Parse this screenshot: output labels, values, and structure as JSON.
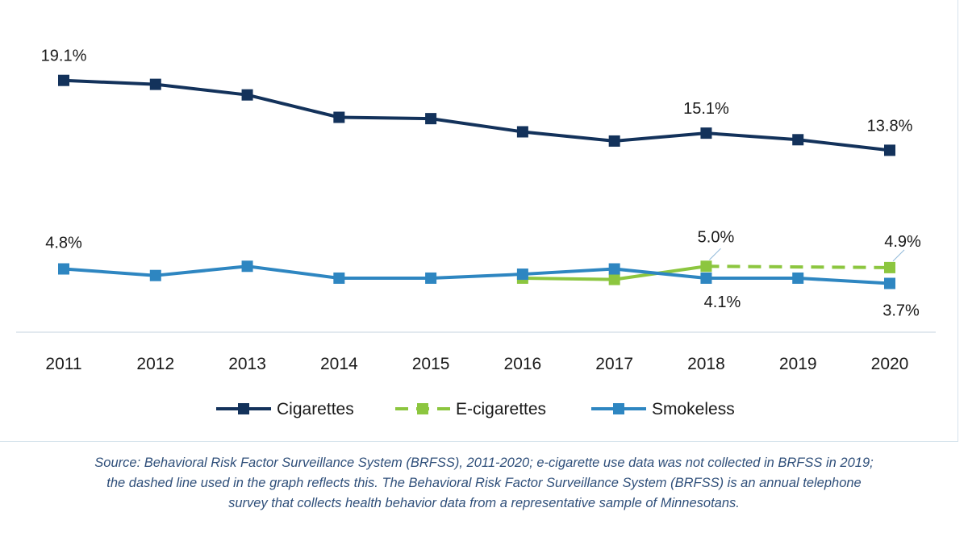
{
  "chart_data": {
    "type": "line",
    "x": [
      "2011",
      "2012",
      "2013",
      "2014",
      "2015",
      "2016",
      "2017",
      "2018",
      "2019",
      "2020"
    ],
    "series": [
      {
        "name": "Cigarettes",
        "color": "#13325b",
        "dash": false,
        "values": [
          19.1,
          18.8,
          18.0,
          16.3,
          16.2,
          15.2,
          14.5,
          15.1,
          14.6,
          13.8
        ]
      },
      {
        "name": "E-cigarettes",
        "color": "#8cc63f",
        "dash_from_index": 7,
        "values": [
          null,
          null,
          null,
          null,
          null,
          4.1,
          4.0,
          5.0,
          null,
          4.9
        ]
      },
      {
        "name": "Smokeless",
        "color": "#2e86c1",
        "dash": false,
        "values": [
          4.8,
          4.3,
          5.0,
          4.1,
          4.1,
          4.4,
          4.8,
          4.1,
          4.1,
          3.7
        ]
      }
    ],
    "data_labels": [
      {
        "series": "Cigarettes",
        "index": 0,
        "text": "19.1%"
      },
      {
        "series": "Cigarettes",
        "index": 7,
        "text": "15.1%"
      },
      {
        "series": "Cigarettes",
        "index": 9,
        "text": "13.8%"
      },
      {
        "series": "Smokeless",
        "index": 0,
        "text": "4.8%"
      },
      {
        "series": "E-cigarettes",
        "index": 7,
        "text": "5.0%"
      },
      {
        "series": "E-cigarettes",
        "index": 9,
        "text": "4.9%"
      },
      {
        "series": "Smokeless",
        "index": 7,
        "text": "4.1%"
      },
      {
        "series": "Smokeless",
        "index": 9,
        "text": "3.7%"
      }
    ],
    "ylim": [
      0,
      20
    ],
    "grid": false,
    "legend_position": "bottom"
  },
  "source_note": [
    "Source: Behavioral Risk Factor Surveillance System (BRFSS), 2011-2020; e-cigarette use data was not collected in BRFSS in 2019;",
    "the dashed line used in the graph reflects this. The Behavioral Risk Factor Surveillance System (BRFSS) is an annual telephone",
    "survey that collects health behavior data from a representative sample of Minnesotans."
  ]
}
